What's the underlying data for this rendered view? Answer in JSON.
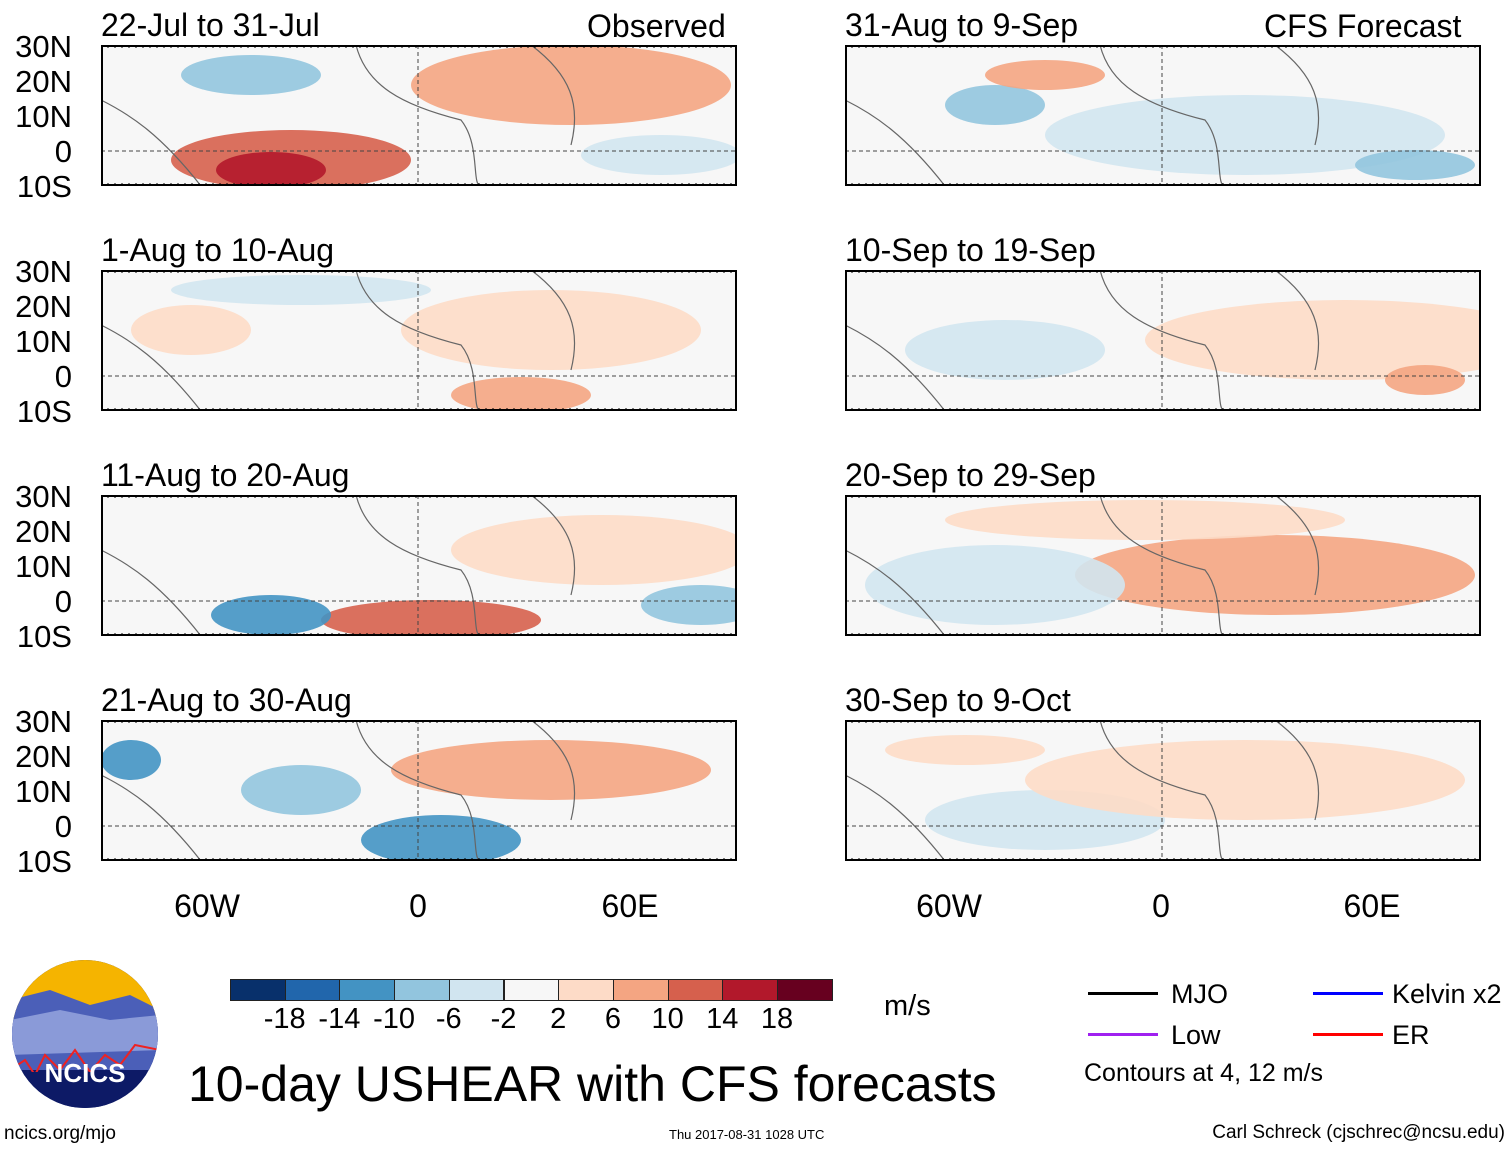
{
  "title": "10-day USHEAR with CFS forecasts",
  "headers": {
    "left": "Observed",
    "right": "CFS Forecast"
  },
  "panels_left": [
    {
      "label": "22-Jul to 31-Jul"
    },
    {
      "label": "1-Aug to 10-Aug"
    },
    {
      "label": "11-Aug to 20-Aug"
    },
    {
      "label": "21-Aug to 30-Aug"
    }
  ],
  "panels_right": [
    {
      "label": "31-Aug to 9-Sep"
    },
    {
      "label": "10-Sep to 19-Sep"
    },
    {
      "label": "20-Sep to 29-Sep"
    },
    {
      "label": "30-Sep to 9-Oct"
    }
  ],
  "lat_labels": [
    "30N",
    "20N",
    "10N",
    "0",
    "10S"
  ],
  "lon_labels": [
    "60W",
    "0",
    "60E"
  ],
  "colorbar": {
    "colors": [
      "#08306b",
      "#2166ac",
      "#4393c3",
      "#92c5de",
      "#d1e5f0",
      "#f7f7f7",
      "#fddbc7",
      "#f4a582",
      "#d6604d",
      "#b2182b",
      "#67001f"
    ],
    "ticks": [
      "-18",
      "-14",
      "-10",
      "-6",
      "-2",
      "2",
      "6",
      "10",
      "14",
      "18"
    ],
    "units": "m/s"
  },
  "legend": {
    "items": [
      {
        "label": "MJO",
        "color": "#000000"
      },
      {
        "label": "Kelvin x2",
        "color": "#0000ff"
      },
      {
        "label": "Low",
        "color": "#a020f0"
      },
      {
        "label": "ER",
        "color": "#ff0000"
      }
    ],
    "note": "Contours at 4, 12 m/s"
  },
  "logo_text": "NCICS",
  "footer": {
    "url": "ncics.org/mjo",
    "timestamp": "Thu 2017-08-31 1028 UTC",
    "credit": "Carl Schreck (cjschrec@ncsu.edu)"
  }
}
